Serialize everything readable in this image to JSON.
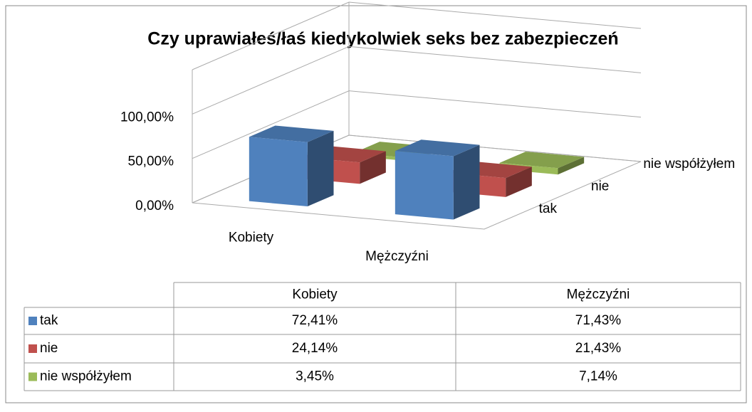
{
  "chart_data": {
    "type": "bar3d",
    "title": "Czy uprawiałeś/łaś kiedykolwiek seks bez zabezpieczeń",
    "categories": [
      "Kobiety",
      "Mężczyźni"
    ],
    "series": [
      {
        "name": "tak",
        "color": "#4f81bd",
        "values": [
          72.41,
          71.43
        ],
        "value_labels": [
          "72,41%",
          "71,43%"
        ]
      },
      {
        "name": "nie",
        "color": "#c0504d",
        "values": [
          24.14,
          21.43
        ],
        "value_labels": [
          "24,14%",
          "21,43%"
        ]
      },
      {
        "name": "nie współżyłem",
        "color": "#9bbb59",
        "values": [
          3.45,
          7.14
        ],
        "value_labels": [
          "3,45%",
          "7,14%"
        ]
      }
    ],
    "ylim": [
      0,
      150
    ],
    "yticks": [
      {
        "value": 0,
        "label": "0,00%"
      },
      {
        "value": 50,
        "label": "50,00%"
      },
      {
        "value": 100,
        "label": "100,00%"
      }
    ],
    "grid": true
  }
}
